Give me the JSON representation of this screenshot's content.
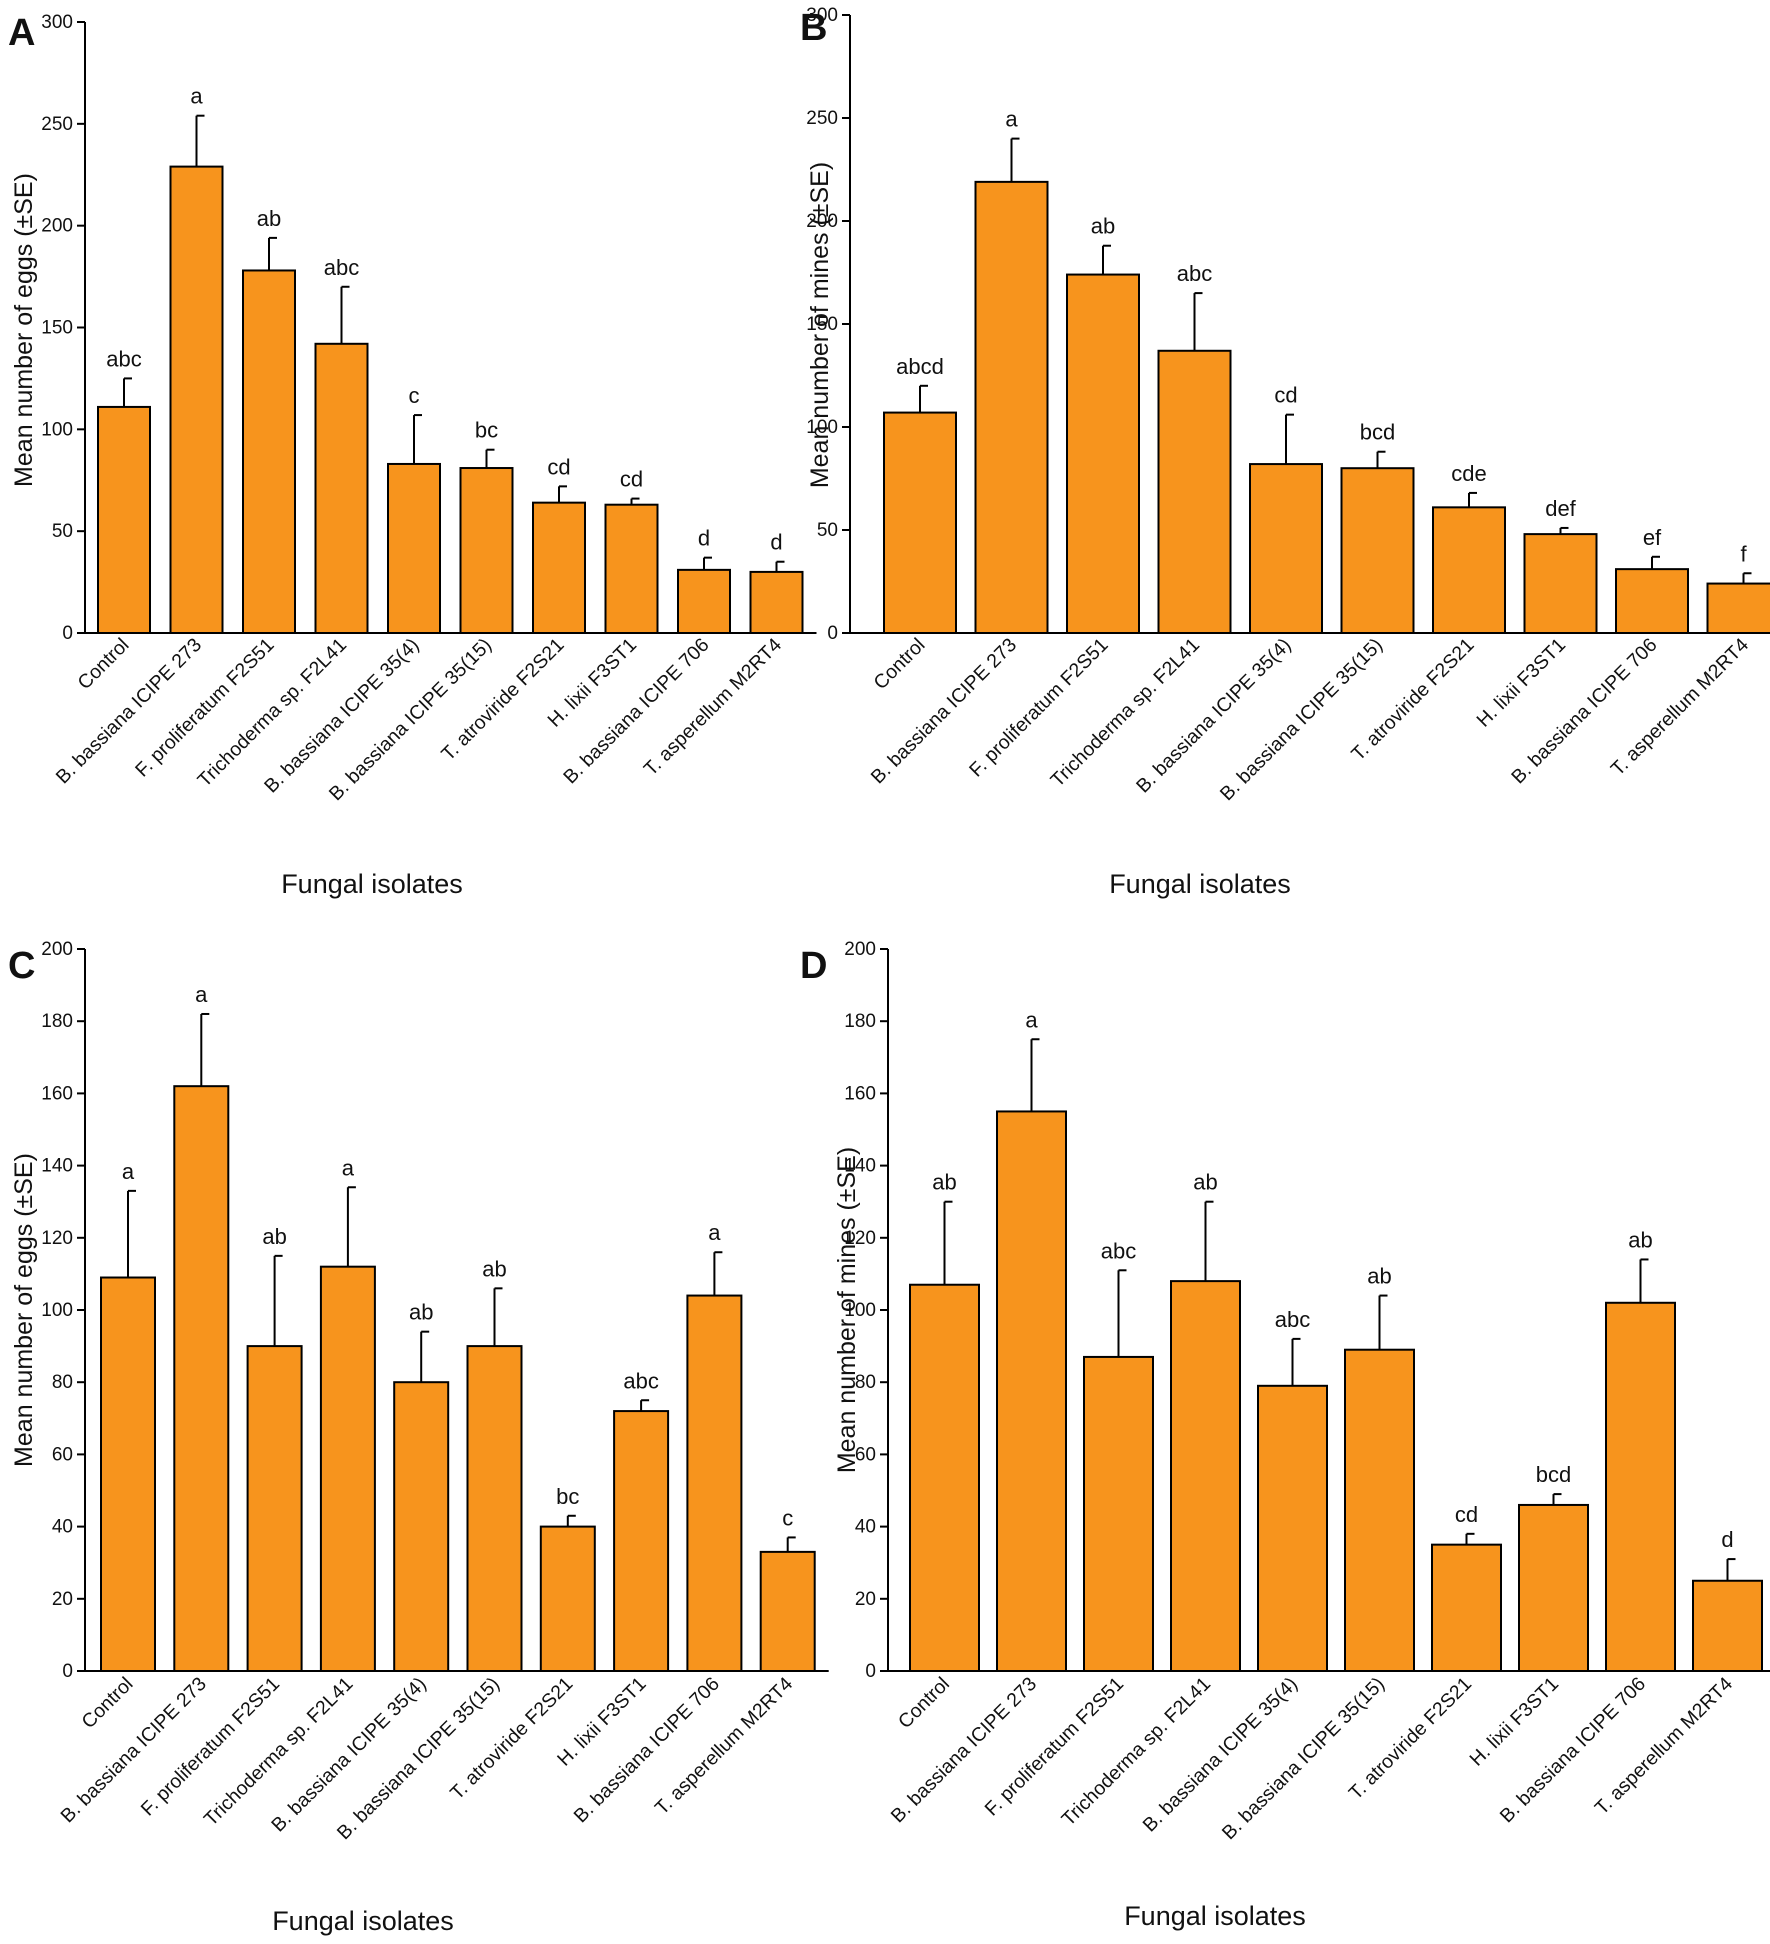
{
  "figure": {
    "bar_color": "#f7941d",
    "stroke_color": "#000000"
  },
  "chart_data": [
    {
      "panel": "A",
      "type": "bar",
      "xlabel": "Fungal isolates",
      "ylabel": "Mean number of eggs (±SE)",
      "ylim": [
        0,
        300
      ],
      "yticks": [
        0,
        50,
        100,
        150,
        200,
        250,
        300
      ],
      "categories": [
        "Control",
        "B. bassiana ICIPE 273",
        "F. proliferatum F2S51",
        "Trichoderma sp. F2L41",
        "B. bassiana ICIPE 35(4)",
        "B. bassiana ICIPE 35(15)",
        "T. atroviride F2S21",
        "H. lixii F3ST1",
        "B. bassiana ICIPE 706",
        "T. asperellum M2RT4"
      ],
      "values": [
        111,
        229,
        178,
        142,
        83,
        81,
        64,
        63,
        31,
        30
      ],
      "errors": [
        14,
        25,
        16,
        28,
        24,
        9,
        8,
        3,
        6,
        5
      ],
      "letters": [
        "abc",
        "a",
        "ab",
        "abc",
        "c",
        "bc",
        "cd",
        "cd",
        "d",
        "d"
      ]
    },
    {
      "panel": "B",
      "type": "bar",
      "xlabel": "Fungal isolates",
      "ylabel": "Mean number of mines (±SE)",
      "ylim": [
        0,
        300
      ],
      "yticks": [
        0,
        50,
        100,
        150,
        200,
        250,
        300
      ],
      "categories": [
        "Control",
        "B. bassiana ICIPE 273",
        "F. proliferatum F2S51",
        "Trichoderma sp. F2L41",
        "B. bassiana ICIPE 35(4)",
        "B. bassiana ICIPE 35(15)",
        "T. atroviride F2S21",
        "H. lixii F3ST1",
        "B. bassiana ICIPE 706",
        "T. asperellum M2RT4"
      ],
      "values": [
        107,
        219,
        174,
        137,
        82,
        80,
        61,
        48,
        31,
        24
      ],
      "errors": [
        13,
        21,
        14,
        28,
        24,
        8,
        7,
        3,
        6,
        5
      ],
      "letters": [
        "abcd",
        "a",
        "ab",
        "abc",
        "cd",
        "bcd",
        "cde",
        "def",
        "ef",
        "f"
      ]
    },
    {
      "panel": "C",
      "type": "bar",
      "xlabel": "Fungal isolates",
      "ylabel": "Mean number of eggs (±SE)",
      "ylim": [
        0,
        200
      ],
      "yticks": [
        0,
        20,
        40,
        60,
        80,
        100,
        120,
        140,
        160,
        180,
        200
      ],
      "categories": [
        "Control",
        "B. bassiana ICIPE 273",
        "F. proliferatum F2S51",
        "Trichoderma sp. F2L41",
        "B. bassiana ICIPE 35(4)",
        "B. bassiana ICIPE 35(15)",
        "T. atroviride F2S21",
        "H. lixii F3ST1",
        "B. bassiana ICIPE 706",
        "T. asperellum M2RT4"
      ],
      "values": [
        109,
        162,
        90,
        112,
        80,
        90,
        40,
        72,
        104,
        33
      ],
      "errors": [
        24,
        20,
        25,
        22,
        14,
        16,
        3,
        3,
        12,
        4
      ],
      "letters": [
        "a",
        "a",
        "ab",
        "a",
        "ab",
        "ab",
        "bc",
        "abc",
        "a",
        "c"
      ]
    },
    {
      "panel": "D",
      "type": "bar",
      "xlabel": "Fungal isolates",
      "ylabel": "Mean number of mines (±SE)",
      "ylim": [
        0,
        200
      ],
      "yticks": [
        0,
        20,
        40,
        60,
        80,
        100,
        120,
        140,
        160,
        180,
        200
      ],
      "categories": [
        "Control",
        "B. bassiana ICIPE 273",
        "F. proliferatum F2S51",
        "Trichoderma sp. F2L41",
        "B. bassiana ICIPE 35(4)",
        "B. bassiana ICIPE 35(15)",
        "T. atroviride F2S21",
        "H. lixii F3ST1",
        "B. bassiana ICIPE 706",
        "T. asperellum M2RT4"
      ],
      "values": [
        107,
        155,
        87,
        108,
        79,
        89,
        35,
        46,
        102,
        25
      ],
      "errors": [
        23,
        20,
        24,
        22,
        13,
        15,
        3,
        3,
        12,
        6
      ],
      "letters": [
        "ab",
        "a",
        "abc",
        "ab",
        "abc",
        "ab",
        "cd",
        "bcd",
        "ab",
        "d"
      ]
    }
  ]
}
